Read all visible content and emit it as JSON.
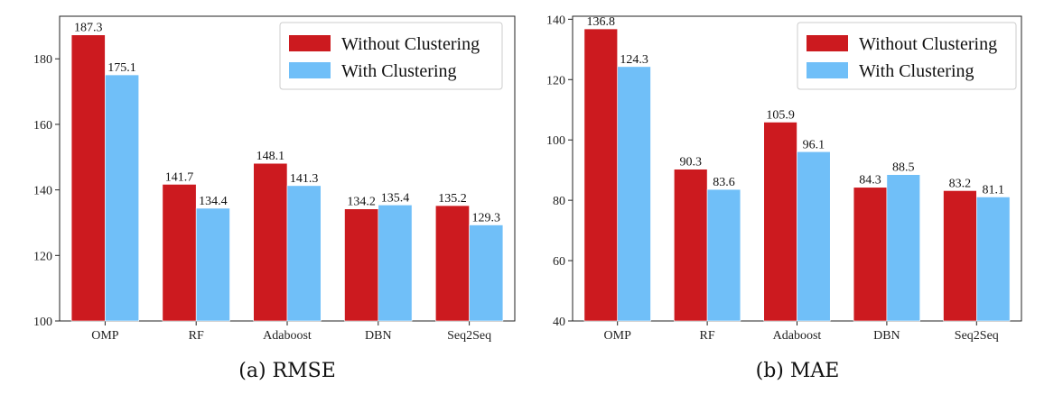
{
  "colors": {
    "without": "#cc1a1f",
    "with": "#70bff8"
  },
  "chart_data": [
    {
      "type": "bar",
      "caption": "(a) RMSE",
      "categories": [
        "OMP",
        "RF",
        "Adaboost",
        "DBN",
        "Seq2Seq"
      ],
      "series": [
        {
          "name": "Without Clustering",
          "values": [
            187.3,
            141.7,
            148.1,
            134.2,
            135.2
          ],
          "labels": [
            "187.3",
            "141.7",
            "148.1",
            "134.2",
            "135.2"
          ]
        },
        {
          "name": "With Clustering",
          "values": [
            175.1,
            134.4,
            141.3,
            135.4,
            129.3
          ],
          "labels": [
            "175.1",
            "134.4",
            "141.3",
            "135.4",
            "129.3"
          ]
        }
      ],
      "ylim": [
        100,
        193
      ],
      "yticks": [
        100,
        120,
        140,
        160,
        180
      ],
      "legend": "top-right",
      "grid": false
    },
    {
      "type": "bar",
      "caption": "(b) MAE",
      "categories": [
        "OMP",
        "RF",
        "Adaboost",
        "DBN",
        "Seq2Seq"
      ],
      "series": [
        {
          "name": "Without Clustering",
          "values": [
            136.8,
            90.3,
            105.9,
            84.3,
            83.2
          ],
          "labels": [
            "136.8",
            "90.3",
            "105.9",
            "84.3",
            "83.2"
          ]
        },
        {
          "name": "With Clustering",
          "values": [
            124.3,
            83.6,
            96.1,
            88.5,
            81.1
          ],
          "labels": [
            "124.3",
            "83.6",
            "96.1",
            "88.5",
            "81.1"
          ]
        }
      ],
      "ylim": [
        40,
        141
      ],
      "yticks": [
        40,
        60,
        80,
        100,
        120,
        140
      ],
      "legend": "top-right",
      "grid": false
    }
  ]
}
